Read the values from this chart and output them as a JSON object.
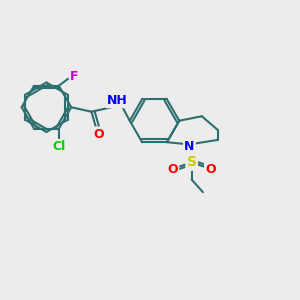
{
  "background_color": "#ececec",
  "bond_color": "#2d6e6e",
  "atom_colors": {
    "Cl": "#00cc00",
    "F": "#cc00cc",
    "O": "#ff0000",
    "N": "#0000ff",
    "S": "#cccc00",
    "H": "#888888"
  },
  "bond_width": 1.5,
  "font_size": 9
}
